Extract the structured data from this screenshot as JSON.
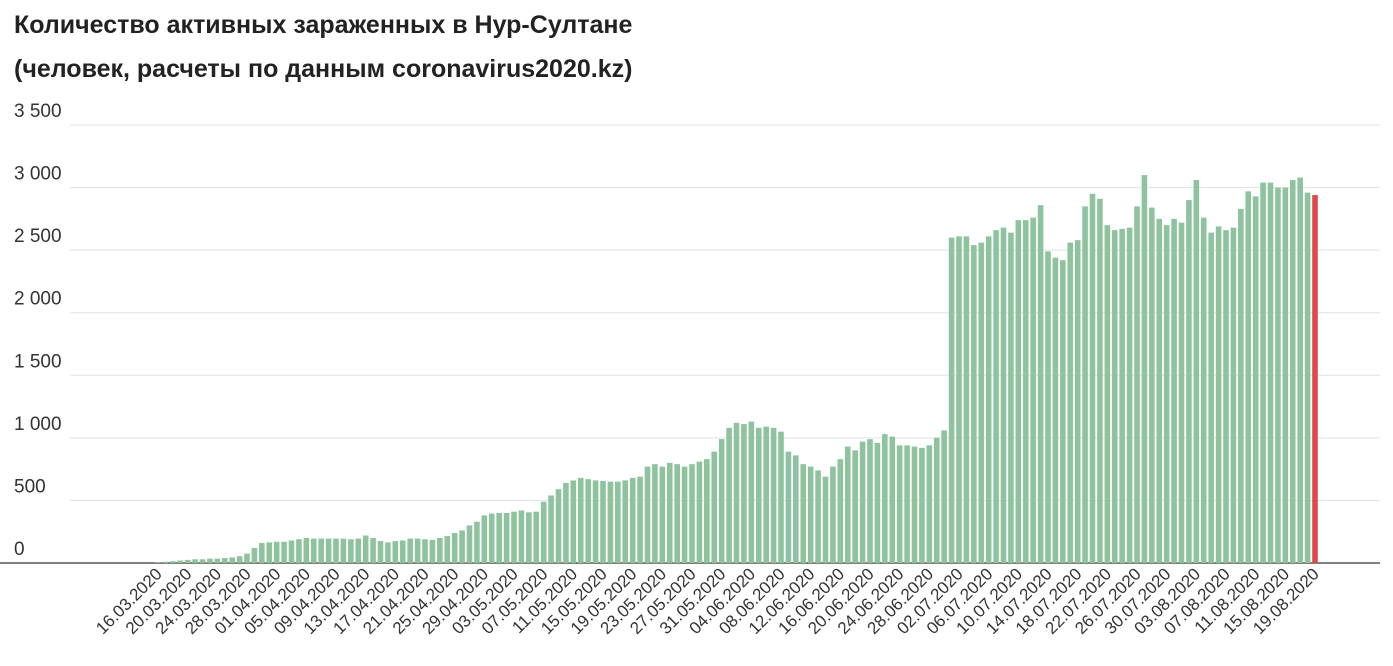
{
  "chart_data": {
    "type": "bar",
    "title": [
      "Количество активных зараженных в Нур-Султане",
      "(человек, расчеты по данным coronavirus2020.kz)"
    ],
    "categories": [
      "16.03.2020",
      null,
      null,
      null,
      "20.03.2020",
      null,
      null,
      null,
      "24.03.2020",
      null,
      null,
      null,
      "28.03.2020",
      null,
      null,
      null,
      "01.04.2020",
      null,
      null,
      null,
      "05.04.2020",
      null,
      null,
      null,
      "09.04.2020",
      null,
      null,
      null,
      "13.04.2020",
      null,
      null,
      null,
      "17.04.2020",
      null,
      null,
      null,
      "21.04.2020",
      null,
      null,
      null,
      "25.04.2020",
      null,
      null,
      null,
      "29.04.2020",
      null,
      null,
      null,
      "03.05.2020",
      null,
      null,
      null,
      "07.05.2020",
      null,
      null,
      null,
      "11.05.2020",
      null,
      null,
      null,
      "15.05.2020",
      null,
      null,
      null,
      "19.05.2020",
      null,
      null,
      null,
      "23.05.2020",
      null,
      null,
      null,
      "27.05.2020",
      null,
      null,
      null,
      "31.05.2020",
      null,
      null,
      null,
      "04.06.2020",
      null,
      null,
      null,
      "08.06.2020",
      null,
      null,
      null,
      "12.06.2020",
      null,
      null,
      null,
      "16.06.2020",
      null,
      null,
      null,
      "20.06.2020",
      null,
      null,
      null,
      "24.06.2020",
      null,
      null,
      null,
      "28.06.2020",
      null,
      null,
      null,
      "02.07.2020",
      null,
      null,
      null,
      "06.07.2020",
      null,
      null,
      null,
      "10.07.2020",
      null,
      null,
      null,
      "14.07.2020",
      null,
      null,
      null,
      "18.07.2020",
      null,
      null,
      null,
      "22.07.2020",
      null,
      null,
      null,
      "26.07.2020",
      null,
      null,
      null,
      "30.07.2020",
      null,
      null,
      null,
      "03.08.2020",
      null,
      null,
      null,
      "07.08.2020",
      null,
      null,
      null,
      "11.08.2020",
      null,
      null,
      null,
      "15.08.2020",
      null,
      null,
      null,
      "19.08.2020"
    ],
    "values": [
      5,
      10,
      15,
      20,
      25,
      30,
      30,
      35,
      35,
      40,
      45,
      55,
      75,
      120,
      160,
      165,
      170,
      170,
      180,
      190,
      200,
      195,
      195,
      195,
      195,
      195,
      190,
      195,
      220,
      200,
      175,
      165,
      175,
      180,
      195,
      195,
      190,
      185,
      200,
      215,
      240,
      260,
      300,
      330,
      380,
      395,
      400,
      400,
      410,
      420,
      405,
      410,
      490,
      540,
      590,
      640,
      660,
      680,
      670,
      660,
      655,
      650,
      650,
      660,
      680,
      690,
      770,
      790,
      770,
      800,
      790,
      770,
      790,
      810,
      830,
      890,
      990,
      1080,
      1120,
      1110,
      1130,
      1080,
      1090,
      1080,
      1050,
      890,
      860,
      790,
      770,
      740,
      690,
      770,
      830,
      930,
      900,
      970,
      990,
      960,
      1030,
      1010,
      940,
      940,
      930,
      920,
      940,
      1000,
      1060,
      2600,
      2610,
      2610,
      2540,
      2560,
      2610,
      2660,
      2680,
      2640,
      2740,
      2740,
      2760,
      2860,
      2490,
      2440,
      2420,
      2560,
      2580,
      2850,
      2950,
      2910,
      2700,
      2660,
      2670,
      2680,
      2850,
      3100,
      2840,
      2750,
      2700,
      2750,
      2720,
      2900,
      3060,
      2760,
      2640,
      2690,
      2660,
      2680,
      2830,
      2970,
      2930,
      3040,
      3040,
      3000,
      3000,
      3060,
      3080,
      2960,
      2940
    ],
    "color": "#8fc3a0",
    "last_color": "#e0484b",
    "ylim": [
      0,
      3500
    ],
    "yticks": [
      0,
      500,
      {
        "value": 1000,
        "label": "1 000"
      },
      {
        "value": 1500,
        "label": "1 500"
      },
      {
        "value": 2000,
        "label": "2 000"
      },
      {
        "value": 2500,
        "label": "2 500"
      },
      {
        "value": 3000,
        "label": "3 000"
      },
      {
        "value": 3500,
        "label": "3 500"
      }
    ],
    "grid": true
  }
}
